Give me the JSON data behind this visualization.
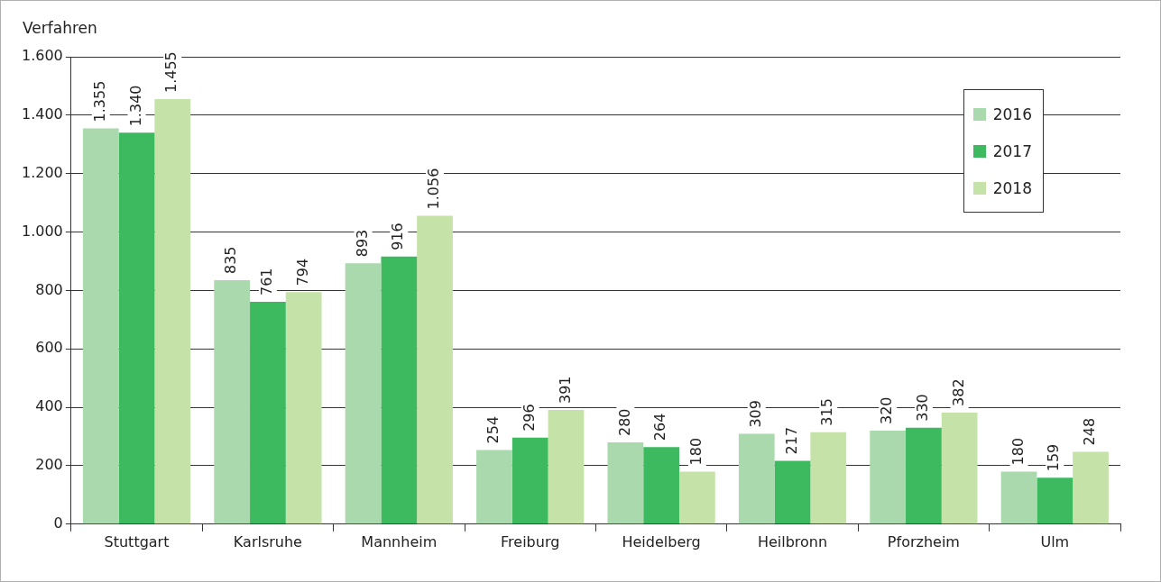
{
  "chart_data": {
    "type": "bar",
    "ylabel": "Verfahren",
    "categories": [
      "Stuttgart",
      "Karlsruhe",
      "Mannheim",
      "Freiburg",
      "Heidelberg",
      "Heilbronn",
      "Pforzheim",
      "Ulm"
    ],
    "series": [
      {
        "name": "2016",
        "color": "#a9d9ac",
        "values": [
          1355,
          835,
          893,
          254,
          280,
          309,
          320,
          180
        ],
        "value_labels": [
          "1.355",
          "835",
          "893",
          "254",
          "280",
          "309",
          "320",
          "180"
        ]
      },
      {
        "name": "2017",
        "color": "#3dba5f",
        "values": [
          1340,
          761,
          916,
          296,
          264,
          217,
          330,
          159
        ],
        "value_labels": [
          "1.340",
          "761",
          "916",
          "296",
          "264",
          "217",
          "330",
          "159"
        ]
      },
      {
        "name": "2018",
        "color": "#c5e2a8",
        "values": [
          1455,
          794,
          1056,
          391,
          180,
          315,
          382,
          248
        ],
        "value_labels": [
          "1.455",
          "794",
          "1.056",
          "391",
          "180",
          "315",
          "382",
          "248"
        ]
      }
    ],
    "ylim": [
      0,
      1600
    ],
    "yticks": [
      0,
      200,
      400,
      600,
      800,
      {
        "value": 1000,
        "label": "1.000"
      },
      {
        "value": 1200,
        "label": "1.200"
      },
      {
        "value": 1400,
        "label": "1.400"
      },
      {
        "value": 1600,
        "label": "1.600"
      }
    ],
    "grid": "y",
    "legend": "top right"
  }
}
